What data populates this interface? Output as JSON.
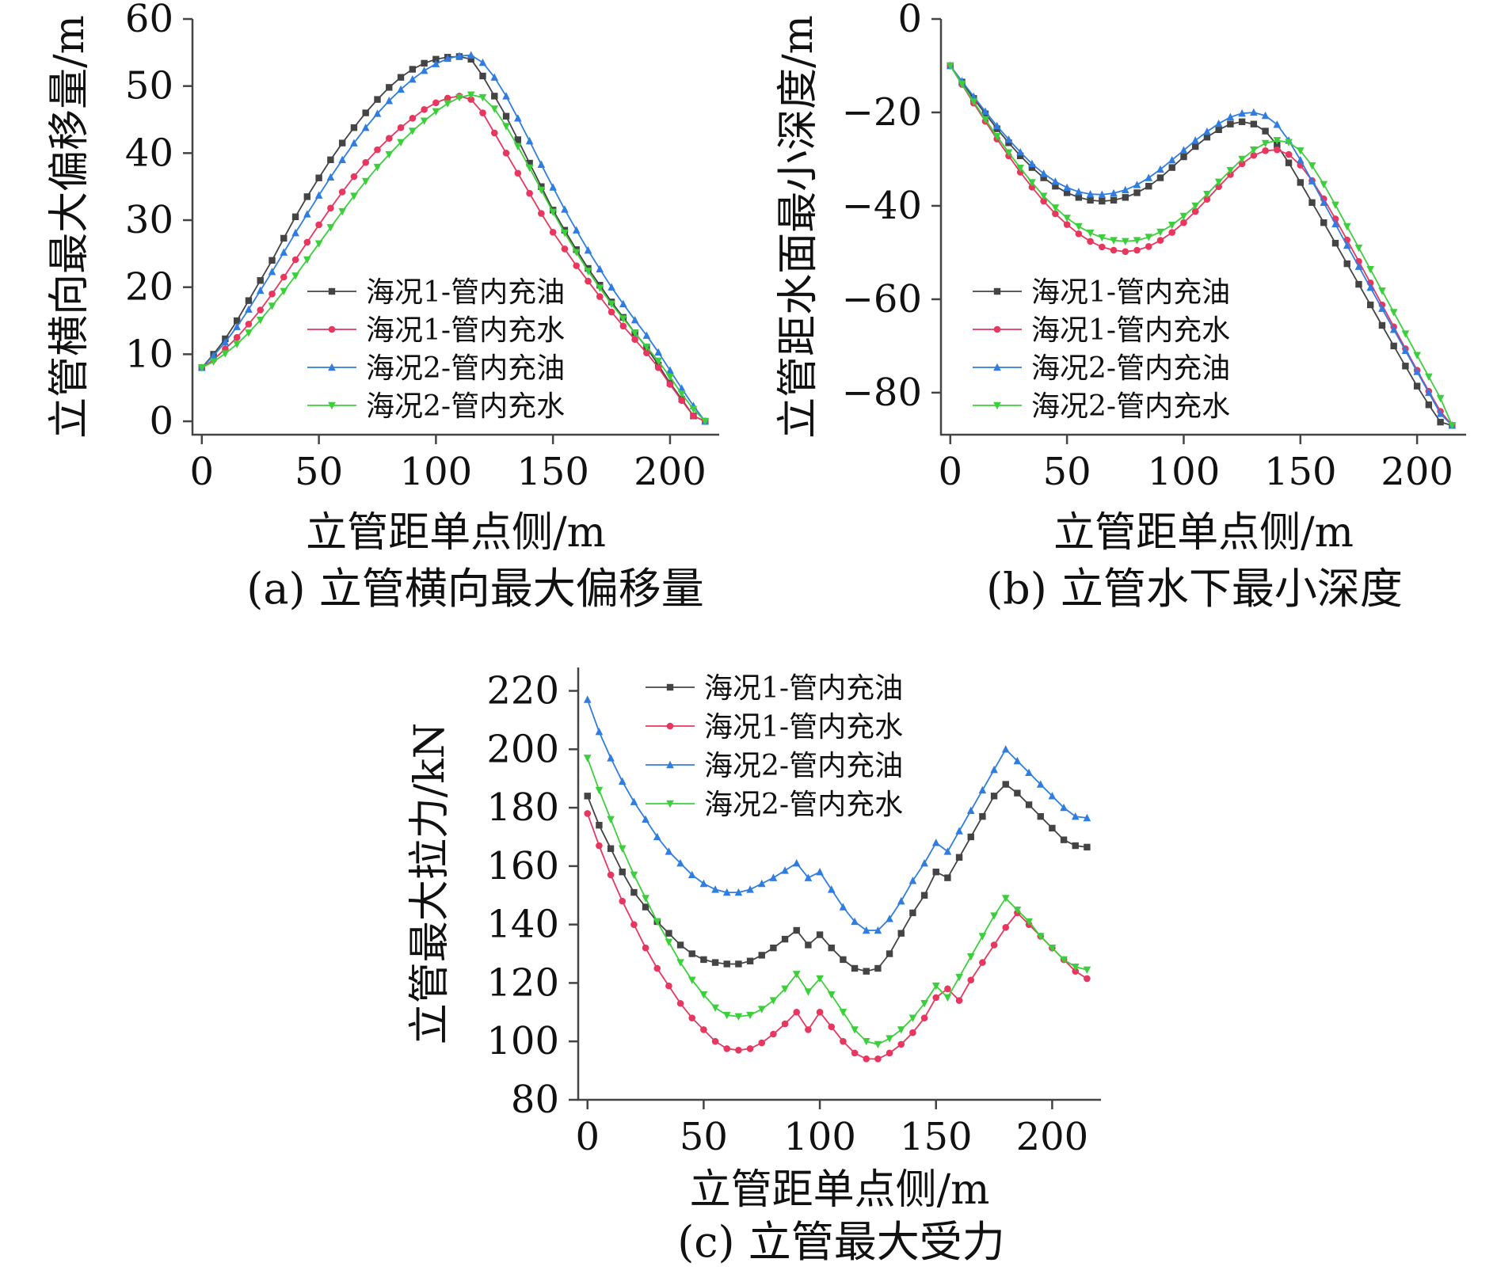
{
  "legend_labels": [
    "海况1-管内充油",
    "海况1-管内充水",
    "海况2-管内充油",
    "海况2-管内充水"
  ],
  "colors": {
    "oil1": "#444444",
    "water1": "#e8365f",
    "oil2": "#2f7de0",
    "water2": "#3ccf3c"
  },
  "chart_data": [
    {
      "id": "a",
      "type": "line",
      "caption": "(a) 立管横向最大偏移量",
      "xlabel": "立管距单点侧/m",
      "ylabel": "立管横向最大偏移量/m",
      "xlim": [
        -4,
        221
      ],
      "ylim": [
        -2,
        60
      ],
      "xticks": [
        0,
        50,
        100,
        150,
        200
      ],
      "yticks": [
        0,
        10,
        20,
        30,
        40,
        50,
        60
      ],
      "x": [
        0,
        5,
        10,
        15,
        20,
        25,
        30,
        35,
        40,
        45,
        50,
        55,
        60,
        65,
        70,
        75,
        80,
        85,
        90,
        95,
        100,
        105,
        110,
        115,
        120,
        125,
        130,
        135,
        140,
        145,
        150,
        155,
        160,
        165,
        170,
        175,
        180,
        185,
        190,
        195,
        200,
        205,
        210,
        215
      ],
      "series": [
        {
          "name": "海况1-管内充油",
          "color": "oil1",
          "marker": "square",
          "values": [
            8,
            10,
            12.3,
            15,
            18,
            21,
            24,
            27.3,
            30.5,
            33.5,
            36.3,
            39,
            41.5,
            43.8,
            46,
            48,
            49.8,
            51.3,
            52.5,
            53.4,
            54,
            54.3,
            54.4,
            54,
            51.5,
            48.5,
            45.5,
            42,
            38.5,
            35,
            31.5,
            28.5,
            25.6,
            22.8,
            20.3,
            17.8,
            15.5,
            13.2,
            11,
            8.4,
            5.7,
            3.3,
            0.8,
            0
          ]
        },
        {
          "name": "海况1-管内充水",
          "color": "water1",
          "marker": "circle",
          "values": [
            8,
            9.2,
            10.8,
            12.5,
            14.5,
            16.6,
            19,
            21.5,
            24.1,
            26.7,
            29.3,
            31.8,
            34.2,
            36.5,
            38.6,
            40.5,
            42.2,
            43.8,
            45.2,
            46.5,
            47.5,
            48.2,
            48.5,
            48,
            46,
            43,
            40,
            37,
            34,
            31,
            28.2,
            25.7,
            23.2,
            20.9,
            18.6,
            16.3,
            14.2,
            12.2,
            10.2,
            8,
            5.5,
            3.1,
            0.8,
            0
          ]
        },
        {
          "name": "海况2-管内充油",
          "color": "oil2",
          "marker": "triangle-up",
          "values": [
            8,
            9.8,
            11.8,
            14.1,
            16.7,
            19.5,
            22.3,
            25.2,
            28.1,
            30.9,
            33.7,
            36.4,
            39,
            41.5,
            43.8,
            45.9,
            47.8,
            49.5,
            51,
            52.3,
            53.3,
            54.1,
            54.5,
            54.6,
            53.5,
            51.3,
            48.5,
            45.2,
            41.8,
            38.3,
            34.9,
            31.6,
            28.5,
            25.5,
            22.7,
            20,
            17.5,
            15.1,
            12.8,
            10.3,
            7.6,
            4.9,
            2.3,
            0
          ]
        },
        {
          "name": "海况2-管内充水",
          "color": "water2",
          "marker": "triangle-down",
          "values": [
            8,
            8.9,
            10.1,
            11.5,
            13.2,
            15.1,
            17.2,
            19.4,
            21.7,
            24.1,
            26.5,
            28.9,
            31.3,
            33.6,
            35.8,
            37.9,
            39.8,
            41.6,
            43.3,
            44.8,
            46.2,
            47.4,
            48.3,
            48.7,
            48.3,
            46.6,
            44,
            41,
            37.8,
            34.5,
            31.2,
            28.1,
            25.2,
            22.4,
            19.9,
            17.5,
            15.3,
            13.2,
            11.1,
            9,
            6.6,
            4.1,
            1.8,
            0
          ]
        }
      ]
    },
    {
      "id": "b",
      "type": "line",
      "caption": "(b) 立管水下最小深度",
      "xlabel": "立管距单点侧/m",
      "ylabel": "立管距水面最小深度/m",
      "xlim": [
        -4,
        221
      ],
      "ylim": [
        -89,
        0
      ],
      "xticks": [
        0,
        50,
        100,
        150,
        200
      ],
      "yticks": [
        0,
        -20,
        -40,
        -60,
        -80
      ],
      "x": [
        0,
        5,
        10,
        15,
        20,
        25,
        30,
        35,
        40,
        45,
        50,
        55,
        60,
        65,
        70,
        75,
        80,
        85,
        90,
        95,
        100,
        105,
        110,
        115,
        120,
        125,
        130,
        135,
        140,
        145,
        150,
        155,
        160,
        165,
        170,
        175,
        180,
        185,
        190,
        195,
        200,
        205,
        210,
        215
      ],
      "series": [
        {
          "name": "海况1-管内充油",
          "color": "oil1",
          "marker": "square",
          "values": [
            -10,
            -13.5,
            -17,
            -20.3,
            -23.5,
            -26.5,
            -29.3,
            -31.8,
            -34,
            -35.8,
            -37.2,
            -38.2,
            -38.8,
            -39,
            -38.8,
            -38.2,
            -37.2,
            -35.8,
            -34,
            -31.8,
            -29.5,
            -27.3,
            -25.3,
            -23.7,
            -22.5,
            -22,
            -22.5,
            -24,
            -27,
            -30.8,
            -35,
            -39.3,
            -43.6,
            -48,
            -52.4,
            -56.8,
            -61.2,
            -65.6,
            -70,
            -74.3,
            -78.6,
            -82.6,
            -86.3,
            -87
          ]
        },
        {
          "name": "海况1-管内充水",
          "color": "water1",
          "marker": "circle",
          "values": [
            -10,
            -14,
            -18,
            -21.9,
            -25.7,
            -29.3,
            -32.8,
            -36,
            -39,
            -41.7,
            -44,
            -46,
            -47.6,
            -48.8,
            -49.5,
            -49.8,
            -49.5,
            -48.7,
            -47.4,
            -45.7,
            -43.6,
            -41.2,
            -38.6,
            -35.9,
            -33.3,
            -31,
            -29.2,
            -28.2,
            -28,
            -29,
            -31.3,
            -34.6,
            -38.5,
            -42.8,
            -47.3,
            -51.9,
            -56.5,
            -61.2,
            -65.9,
            -70.6,
            -75.2,
            -79.7,
            -84,
            -87
          ]
        },
        {
          "name": "海况2-管内充油",
          "color": "oil2",
          "marker": "triangle-up",
          "values": [
            -10,
            -13.3,
            -16.6,
            -19.8,
            -22.9,
            -25.8,
            -28.5,
            -31,
            -33.1,
            -34.8,
            -36.1,
            -37,
            -37.5,
            -37.6,
            -37.3,
            -36.6,
            -35.5,
            -34,
            -32.2,
            -30.2,
            -28.1,
            -26,
            -24.1,
            -22.4,
            -21,
            -20.2,
            -20,
            -20.7,
            -22.6,
            -26,
            -30.2,
            -34.7,
            -39.3,
            -43.9,
            -48.5,
            -53,
            -57.5,
            -62,
            -66.5,
            -71,
            -75.5,
            -80,
            -84.5,
            -87
          ]
        },
        {
          "name": "海况2-管内充水",
          "color": "water2",
          "marker": "triangle-down",
          "values": [
            -10,
            -13.9,
            -17.7,
            -21.5,
            -25.1,
            -28.6,
            -31.9,
            -35,
            -37.9,
            -40.4,
            -42.6,
            -44.4,
            -45.8,
            -46.8,
            -47.4,
            -47.6,
            -47.4,
            -46.7,
            -45.6,
            -44.1,
            -42.2,
            -40,
            -37.5,
            -34.9,
            -32.4,
            -30,
            -28,
            -26.6,
            -26,
            -26.4,
            -28.2,
            -31.4,
            -35.4,
            -39.8,
            -44.4,
            -49,
            -53.6,
            -58.2,
            -62.8,
            -67.4,
            -72,
            -76.6,
            -81.2,
            -87
          ]
        }
      ]
    },
    {
      "id": "c",
      "type": "line",
      "caption": "(c) 立管最大受力",
      "xlabel": "立管距单点侧/m",
      "ylabel": "立管最大拉力/kN",
      "xlim": [
        -4,
        221
      ],
      "ylim": [
        80,
        228
      ],
      "xticks": [
        0,
        50,
        100,
        150,
        200
      ],
      "yticks": [
        80,
        100,
        120,
        140,
        160,
        180,
        200,
        220
      ],
      "x": [
        0,
        5,
        10,
        15,
        20,
        25,
        30,
        35,
        40,
        45,
        50,
        55,
        60,
        65,
        70,
        75,
        80,
        85,
        90,
        95,
        100,
        105,
        110,
        115,
        120,
        125,
        130,
        135,
        140,
        145,
        150,
        155,
        160,
        165,
        170,
        175,
        180,
        185,
        190,
        195,
        200,
        205,
        210,
        215
      ],
      "series": [
        {
          "name": "海况1-管内充油",
          "color": "oil1",
          "marker": "square",
          "values": [
            184,
            174,
            166,
            158,
            151,
            146,
            141,
            137,
            133,
            130,
            128,
            127,
            126.5,
            126.5,
            127.5,
            129.5,
            132,
            135,
            138,
            133,
            136.5,
            132,
            128,
            125,
            124,
            125,
            130,
            137,
            144,
            150,
            158,
            156,
            163,
            170,
            177,
            184,
            188,
            185,
            181,
            177,
            173,
            169,
            167,
            166.5
          ]
        },
        {
          "name": "海况1-管内充水",
          "color": "water1",
          "marker": "circle",
          "values": [
            178,
            167,
            157,
            148,
            140,
            132,
            125,
            119,
            113,
            108,
            104,
            100,
            97.5,
            97,
            97.5,
            99.5,
            102.5,
            106,
            110,
            104,
            110,
            105,
            100,
            96,
            94,
            94,
            96,
            99,
            103,
            108,
            115,
            118,
            114,
            121,
            127,
            133,
            139,
            144,
            140,
            136,
            132,
            128,
            124,
            121.5
          ]
        },
        {
          "name": "海况2-管内充油",
          "color": "oil2",
          "marker": "triangle-up",
          "values": [
            217,
            206,
            197,
            189,
            182,
            176,
            170,
            165,
            161,
            157,
            154,
            152,
            151,
            151,
            152,
            154,
            156,
            158.5,
            161,
            156,
            158,
            152,
            146,
            141,
            138,
            138,
            142,
            148,
            155,
            161,
            168,
            165,
            172,
            179,
            186,
            193,
            200,
            196,
            192,
            188,
            184,
            180,
            177,
            176.5
          ]
        },
        {
          "name": "海况2-管内充水",
          "color": "water2",
          "marker": "triangle-down",
          "values": [
            197,
            186,
            176,
            166,
            157,
            149,
            141,
            134,
            127,
            121,
            116,
            111.5,
            109,
            108.5,
            109,
            111,
            114,
            118,
            123,
            117,
            121.5,
            116,
            110,
            104,
            100,
            99,
            101,
            104,
            108,
            113,
            119,
            115,
            122,
            129,
            136,
            143,
            149,
            145,
            141,
            136,
            132,
            128,
            125.5,
            124.5
          ]
        }
      ]
    }
  ]
}
